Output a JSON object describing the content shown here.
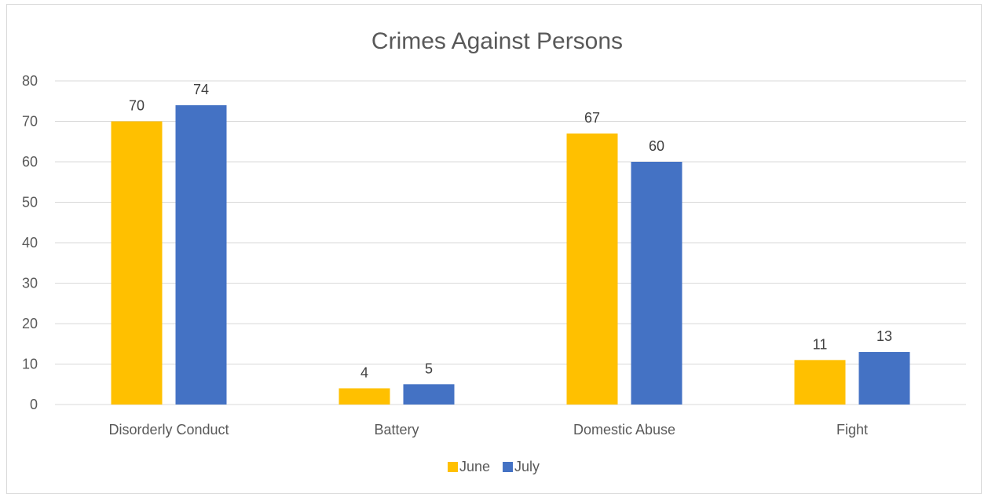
{
  "chart_data": {
    "type": "bar",
    "title": "Crimes Against Persons",
    "xlabel": "",
    "ylabel": "",
    "categories": [
      "Disorderly Conduct",
      "Battery",
      "Domestic Abuse",
      "Fight"
    ],
    "series": [
      {
        "name": "June",
        "values": [
          70,
          4,
          67,
          11
        ],
        "color": "#FFC000"
      },
      {
        "name": "July",
        "values": [
          74,
          5,
          60,
          13
        ],
        "color": "#4472C4"
      }
    ],
    "ylim": [
      0,
      80
    ],
    "yticks": [
      0,
      10,
      20,
      30,
      40,
      50,
      60,
      70,
      80
    ],
    "grid": true,
    "legend_position": "bottom",
    "data_labels": true,
    "gridline_color": "#d9d9d9",
    "text_color": "#595959"
  }
}
